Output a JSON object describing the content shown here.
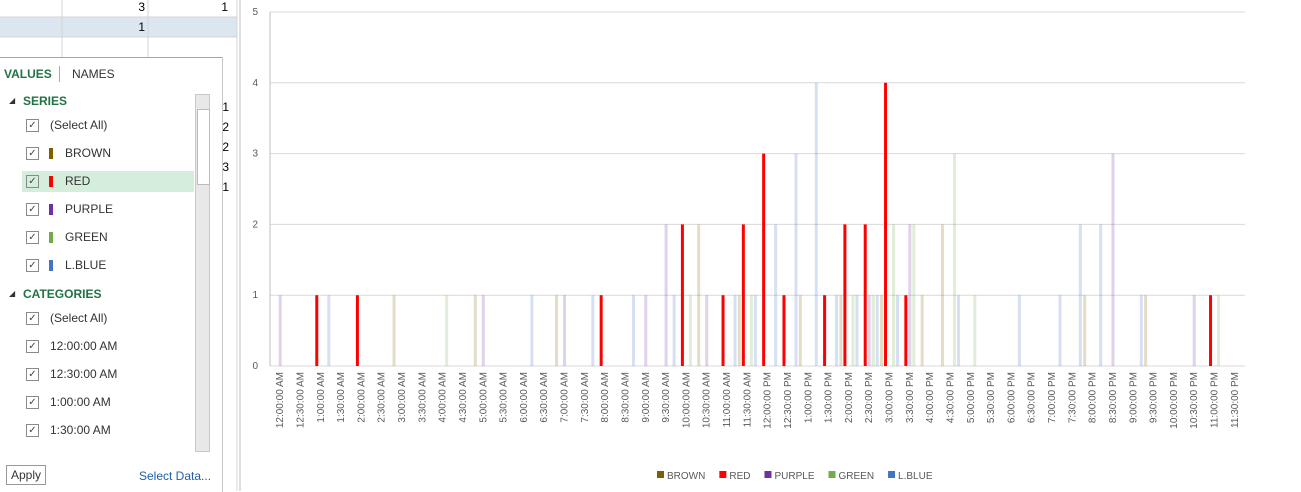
{
  "sheet": {
    "cells": [
      {
        "text": "3",
        "x": 145,
        "y": 7
      },
      {
        "text": "1",
        "x": 228,
        "y": 7
      },
      {
        "text": "1",
        "x": 145,
        "y": 27
      },
      {
        "text": "1",
        "x": 229,
        "y": 107
      },
      {
        "text": "2",
        "x": 229,
        "y": 127
      },
      {
        "text": "2",
        "x": 229,
        "y": 147
      },
      {
        "text": "3",
        "x": 229,
        "y": 167
      },
      {
        "text": "1",
        "x": 229,
        "y": 187
      }
    ]
  },
  "pane": {
    "tabs": [
      "VALUES",
      "NAMES"
    ],
    "series_header": "SERIES",
    "series_items": [
      "(Select All)",
      "BROWN",
      "RED",
      "PURPLE",
      "GREEN",
      "L.BLUE"
    ],
    "categories_header": "CATEGORIES",
    "category_items": [
      "(Select All)",
      "12:00:00 AM",
      "12:30:00 AM",
      "1:00:00 AM",
      "1:30:00 AM"
    ],
    "apply": "Apply",
    "select_data": "Select Data..."
  },
  "chart_data": {
    "type": "bar",
    "categories": [
      "12:00:00 AM",
      "12:30:00 AM",
      "1:00:00 AM",
      "1:30:00 AM",
      "2:00:00 AM",
      "2:30:00 AM",
      "3:00:00 AM",
      "3:30:00 AM",
      "4:00:00 AM",
      "4:30:00 AM",
      "5:00:00 AM",
      "5:30:00 AM",
      "6:00:00 AM",
      "6:30:00 AM",
      "7:00:00 AM",
      "7:30:00 AM",
      "8:00:00 AM",
      "8:30:00 AM",
      "9:00:00 AM",
      "9:30:00 AM",
      "10:00:00 AM",
      "10:30:00 AM",
      "11:00:00 AM",
      "11:30:00 AM",
      "12:00:00 PM",
      "12:30:00 PM",
      "1:00:00 PM",
      "1:30:00 PM",
      "2:00:00 PM",
      "2:30:00 PM",
      "3:00:00 PM",
      "3:30:00 PM",
      "4:00:00 PM",
      "4:30:00 PM",
      "5:00:00 PM",
      "5:30:00 PM",
      "6:00:00 PM",
      "6:30:00 PM",
      "7:00:00 PM",
      "7:30:00 PM",
      "8:00:00 PM",
      "8:30:00 PM",
      "9:00:00 PM",
      "9:30:00 PM",
      "10:00:00 PM",
      "10:30:00 PM",
      "11:00:00 PM",
      "11:30:00 PM"
    ],
    "series": [
      {
        "name": "BROWN",
        "color": "#7f6000",
        "values": [
          0,
          0,
          0,
          0,
          0,
          0,
          1,
          0,
          0,
          0,
          1,
          0,
          0,
          0,
          1,
          0,
          0,
          0,
          0,
          0,
          0,
          2,
          0,
          1,
          0,
          0,
          1,
          0,
          1,
          0,
          1,
          0,
          1,
          2,
          0,
          0,
          0,
          0,
          0,
          0,
          1,
          0,
          0,
          1,
          0,
          0,
          0,
          0
        ]
      },
      {
        "name": "RED",
        "color": "#ff0000",
        "values": [
          0,
          0,
          1,
          0,
          1,
          0,
          0,
          0,
          0,
          0,
          0,
          0,
          0,
          0,
          0,
          0,
          1,
          0,
          0,
          0,
          2,
          0,
          1,
          2,
          3,
          1,
          0,
          1,
          2,
          2,
          4,
          1,
          0,
          0,
          0,
          0,
          0,
          0,
          0,
          0,
          0,
          0,
          0,
          0,
          0,
          0,
          1,
          0
        ]
      },
      {
        "name": "PURPLE",
        "color": "#7030a0",
        "values": [
          1,
          0,
          0,
          0,
          0,
          0,
          0,
          0,
          0,
          0,
          1,
          0,
          0,
          0,
          1,
          0,
          0,
          0,
          1,
          2,
          0,
          1,
          0,
          0,
          0,
          0,
          0,
          0,
          0,
          1,
          0,
          2,
          0,
          0,
          0,
          0,
          0,
          0,
          0,
          0,
          0,
          3,
          0,
          0,
          0,
          1,
          0,
          0
        ]
      },
      {
        "name": "GREEN",
        "color": "#70ad47",
        "values": [
          0,
          0,
          0,
          0,
          0,
          0,
          0,
          0,
          1,
          0,
          0,
          0,
          0,
          0,
          0,
          0,
          0,
          0,
          0,
          0,
          1,
          0,
          0,
          1,
          0,
          0,
          0,
          0,
          1,
          1,
          2,
          2,
          0,
          3,
          1,
          0,
          0,
          0,
          0,
          0,
          0,
          0,
          0,
          0,
          0,
          0,
          1,
          0
        ]
      },
      {
        "name": "L.BLUE",
        "color": "#4472c4",
        "values": [
          0,
          0,
          1,
          0,
          0,
          0,
          0,
          0,
          0,
          0,
          0,
          0,
          1,
          0,
          0,
          1,
          0,
          1,
          0,
          1,
          0,
          0,
          1,
          1,
          2,
          3,
          4,
          1,
          1,
          1,
          1,
          0,
          0,
          1,
          0,
          0,
          1,
          0,
          1,
          2,
          2,
          0,
          1,
          0,
          0,
          0,
          0,
          0
        ]
      }
    ],
    "highlight_series": 1,
    "ylim": [
      0,
      5
    ],
    "yticks": [
      0,
      1,
      2,
      3,
      4,
      5
    ],
    "grid": true,
    "legend": "bottom"
  }
}
